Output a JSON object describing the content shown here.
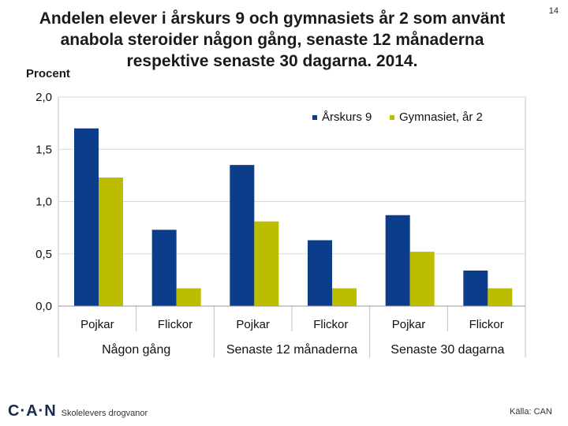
{
  "header": {
    "title_lines": [
      "Andelen elever i årskurs 9 och gymnasiets år 2 som använt",
      "anabola steroider någon gång, senaste 12 månaderna",
      "respektive senaste 30 dagarna. 2014."
    ],
    "slide_number": "14"
  },
  "footer": {
    "logo": "C·A·N",
    "left_text": "Skolelevers drogvanor",
    "right_text": "Källa: CAN"
  },
  "colors": {
    "series_1": "#0b3d8a",
    "series_2": "#bdbd00",
    "grid": "#d9d9d9"
  },
  "chart_data": {
    "type": "bar",
    "ylabel": "Procent",
    "ylim": [
      0,
      2.0
    ],
    "yticks": [
      {
        "value": 0.0,
        "label": "0,0"
      },
      {
        "value": 0.5,
        "label": "0,5"
      },
      {
        "value": 1.0,
        "label": "1,0"
      },
      {
        "value": 1.5,
        "label": "1,5"
      },
      {
        "value": 2.0,
        "label": "2,0"
      }
    ],
    "grid": true,
    "legend_position": "top-right",
    "categories": [
      "Pojkar",
      "Flickor",
      "Pojkar",
      "Flickor",
      "Pojkar",
      "Flickor"
    ],
    "groups": [
      "Någon gång",
      "Senaste 12 månaderna",
      "Senaste 30 dagarna"
    ],
    "series": [
      {
        "name": "Årskurs 9",
        "values": [
          1.7,
          0.73,
          1.35,
          0.63,
          0.87,
          0.34
        ]
      },
      {
        "name": "Gymnasiet, år 2",
        "values": [
          1.23,
          0.17,
          0.81,
          0.17,
          0.52,
          0.17
        ]
      }
    ]
  }
}
